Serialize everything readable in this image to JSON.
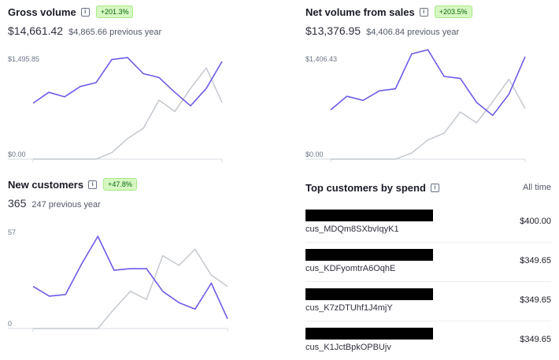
{
  "gross_volume": {
    "title": "Gross volume",
    "badge": "+201.3%",
    "value": "$14,661.42",
    "previous": "$4,865.66 previous year",
    "y_max_label": "$1,495.85",
    "y_min_label": "$0.00"
  },
  "net_volume": {
    "title": "Net volume from sales",
    "badge": "+203.5%",
    "value": "$13,376.95",
    "previous": "$4,406.84 previous year",
    "y_max_label": "$1,406.43",
    "y_min_label": "$0.00"
  },
  "new_customers": {
    "title": "New customers",
    "badge": "+47.8%",
    "value": "365",
    "previous": "247 previous year",
    "y_max_label": "57",
    "y_min_label": "0"
  },
  "top_customers": {
    "title": "Top customers by spend",
    "period": "All time",
    "rows": [
      {
        "id": "cus_MDQm8SXbvIqyK1",
        "amount": "$400.00"
      },
      {
        "id": "cus_KDFyomtrA6OqhE",
        "amount": "$349.65"
      },
      {
        "id": "cus_K7zDTUhf1J4mjY",
        "amount": "$349.65"
      },
      {
        "id": "cus_K1JctBpkOPBUjv",
        "amount": "$349.65"
      }
    ]
  },
  "colors": {
    "current": "#6c5ce7",
    "previous": "#c4c8ce",
    "axis": "#d5dbe1",
    "badge_bg": "#d7f7c2",
    "badge_text": "#05690d"
  },
  "chart_data": [
    {
      "type": "line",
      "ylim": [
        0,
        1495.85
      ],
      "series": [
        {
          "values": [
            870,
            1040,
            970,
            1130,
            1190,
            1550,
            1580,
            1330,
            1270,
            1040,
            830,
            1100,
            1520
          ]
        },
        {
          "values": [
            0,
            0,
            0,
            0,
            0,
            100,
            320,
            480,
            920,
            740,
            1100,
            1420,
            880
          ]
        }
      ]
    },
    {
      "type": "line",
      "ylim": [
        0,
        1406.43
      ],
      "series": [
        {
          "values": [
            720,
            920,
            860,
            1000,
            1030,
            1540,
            1600,
            1210,
            1180,
            830,
            640,
            950,
            1500
          ]
        },
        {
          "values": [
            0,
            0,
            0,
            0,
            0,
            90,
            280,
            380,
            690,
            530,
            840,
            1170,
            740
          ]
        }
      ]
    },
    {
      "type": "line",
      "ylim": [
        0,
        57
      ],
      "series": [
        {
          "values": [
            26,
            20,
            21,
            40,
            57,
            36,
            37,
            37,
            23,
            16,
            12,
            28,
            6
          ]
        },
        {
          "values": [
            0,
            0,
            0,
            0,
            0,
            12,
            23,
            18,
            45,
            39,
            49,
            33,
            26
          ]
        }
      ]
    }
  ]
}
